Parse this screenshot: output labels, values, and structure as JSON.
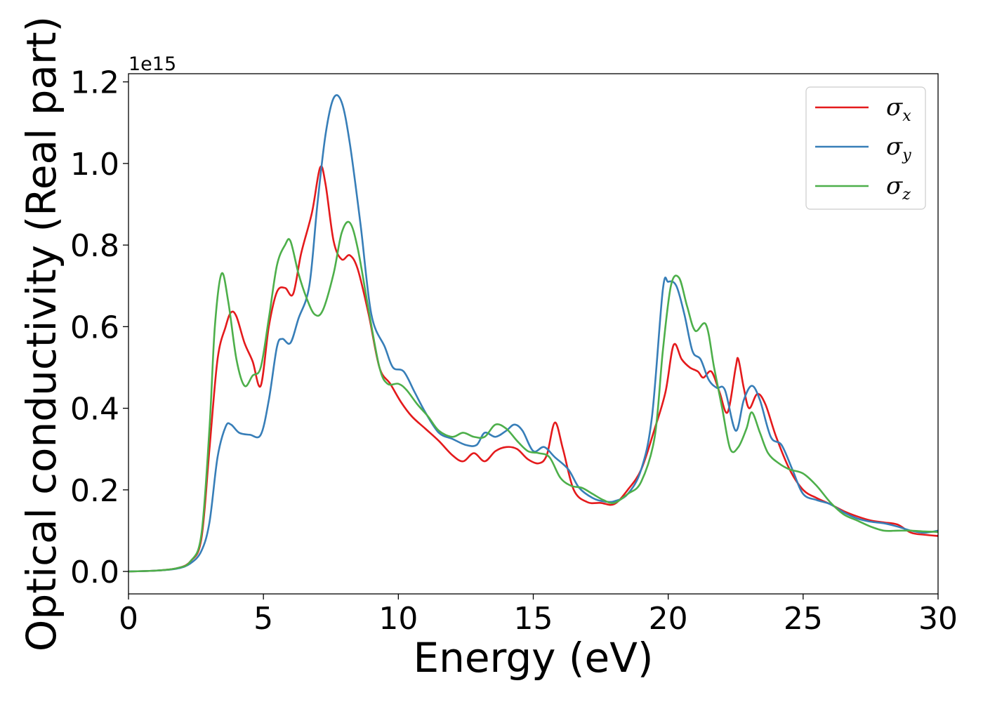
{
  "chart_data": {
    "type": "line",
    "xlabel": "Energy (eV)",
    "ylabel": "Optical conductivity (Real part)",
    "y_offset_label": "1e15",
    "xlim": [
      0,
      30
    ],
    "ylim": [
      -0.055,
      1.22
    ],
    "x_ticks": [
      0,
      5,
      10,
      15,
      20,
      25,
      30
    ],
    "x_tick_labels": [
      "0",
      "5",
      "10",
      "15",
      "20",
      "25",
      "30"
    ],
    "y_ticks": [
      0.0,
      0.2,
      0.4,
      0.6,
      0.8,
      1.0,
      1.2
    ],
    "y_tick_labels": [
      "0.0",
      "0.2",
      "0.4",
      "0.6",
      "0.8",
      "1.0",
      "1.2"
    ],
    "grid": false,
    "legend_position": "top-right",
    "series": [
      {
        "name": "σx",
        "symbol": "σ",
        "subscript": "x",
        "color": "#e41a1c",
        "points": [
          [
            0,
            0
          ],
          [
            1,
            0.002
          ],
          [
            1.8,
            0.008
          ],
          [
            2.3,
            0.025
          ],
          [
            2.7,
            0.08
          ],
          [
            3.0,
            0.3
          ],
          [
            3.3,
            0.52
          ],
          [
            3.6,
            0.6
          ],
          [
            3.8,
            0.635
          ],
          [
            4.0,
            0.625
          ],
          [
            4.3,
            0.56
          ],
          [
            4.6,
            0.515
          ],
          [
            4.9,
            0.455
          ],
          [
            5.2,
            0.6
          ],
          [
            5.5,
            0.685
          ],
          [
            5.8,
            0.695
          ],
          [
            6.1,
            0.68
          ],
          [
            6.4,
            0.78
          ],
          [
            6.8,
            0.88
          ],
          [
            7.1,
            0.99
          ],
          [
            7.3,
            0.95
          ],
          [
            7.6,
            0.81
          ],
          [
            7.9,
            0.765
          ],
          [
            8.2,
            0.775
          ],
          [
            8.5,
            0.74
          ],
          [
            8.9,
            0.63
          ],
          [
            9.3,
            0.5
          ],
          [
            9.7,
            0.46
          ],
          [
            10.1,
            0.415
          ],
          [
            10.5,
            0.38
          ],
          [
            11.0,
            0.35
          ],
          [
            11.5,
            0.32
          ],
          [
            12.0,
            0.285
          ],
          [
            12.4,
            0.27
          ],
          [
            12.8,
            0.29
          ],
          [
            13.2,
            0.27
          ],
          [
            13.6,
            0.295
          ],
          [
            14.0,
            0.305
          ],
          [
            14.4,
            0.3
          ],
          [
            14.8,
            0.275
          ],
          [
            15.2,
            0.265
          ],
          [
            15.5,
            0.285
          ],
          [
            15.8,
            0.365
          ],
          [
            16.1,
            0.3
          ],
          [
            16.5,
            0.2
          ],
          [
            17.0,
            0.17
          ],
          [
            17.5,
            0.168
          ],
          [
            18.0,
            0.165
          ],
          [
            18.5,
            0.2
          ],
          [
            19.0,
            0.25
          ],
          [
            19.5,
            0.35
          ],
          [
            19.9,
            0.44
          ],
          [
            20.2,
            0.555
          ],
          [
            20.5,
            0.52
          ],
          [
            20.8,
            0.5
          ],
          [
            21.1,
            0.49
          ],
          [
            21.3,
            0.475
          ],
          [
            21.6,
            0.49
          ],
          [
            21.9,
            0.44
          ],
          [
            22.2,
            0.39
          ],
          [
            22.5,
            0.5
          ],
          [
            22.6,
            0.52
          ],
          [
            22.8,
            0.45
          ],
          [
            23.0,
            0.4
          ],
          [
            23.3,
            0.435
          ],
          [
            23.6,
            0.41
          ],
          [
            24.0,
            0.33
          ],
          [
            24.5,
            0.25
          ],
          [
            25.0,
            0.2
          ],
          [
            25.5,
            0.18
          ],
          [
            26.0,
            0.165
          ],
          [
            26.5,
            0.148
          ],
          [
            27.0,
            0.135
          ],
          [
            27.5,
            0.125
          ],
          [
            28.0,
            0.12
          ],
          [
            28.5,
            0.115
          ],
          [
            29.0,
            0.095
          ],
          [
            29.5,
            0.09
          ],
          [
            30.0,
            0.087
          ]
        ]
      },
      {
        "name": "σy",
        "symbol": "σ",
        "subscript": "y",
        "color": "#377eb8",
        "points": [
          [
            0,
            0
          ],
          [
            1,
            0.002
          ],
          [
            1.8,
            0.007
          ],
          [
            2.3,
            0.02
          ],
          [
            2.7,
            0.05
          ],
          [
            3.0,
            0.12
          ],
          [
            3.3,
            0.28
          ],
          [
            3.6,
            0.355
          ],
          [
            3.8,
            0.36
          ],
          [
            4.1,
            0.34
          ],
          [
            4.5,
            0.335
          ],
          [
            4.9,
            0.335
          ],
          [
            5.2,
            0.42
          ],
          [
            5.5,
            0.55
          ],
          [
            5.7,
            0.57
          ],
          [
            6.0,
            0.56
          ],
          [
            6.3,
            0.62
          ],
          [
            6.7,
            0.7
          ],
          [
            7.0,
            0.9
          ],
          [
            7.3,
            1.07
          ],
          [
            7.6,
            1.16
          ],
          [
            7.9,
            1.15
          ],
          [
            8.2,
            1.05
          ],
          [
            8.6,
            0.85
          ],
          [
            9.0,
            0.63
          ],
          [
            9.5,
            0.55
          ],
          [
            9.8,
            0.5
          ],
          [
            10.2,
            0.49
          ],
          [
            10.6,
            0.44
          ],
          [
            11.0,
            0.39
          ],
          [
            11.5,
            0.34
          ],
          [
            12.0,
            0.325
          ],
          [
            12.5,
            0.31
          ],
          [
            12.9,
            0.31
          ],
          [
            13.2,
            0.34
          ],
          [
            13.6,
            0.33
          ],
          [
            14.0,
            0.345
          ],
          [
            14.3,
            0.36
          ],
          [
            14.6,
            0.345
          ],
          [
            15.0,
            0.295
          ],
          [
            15.4,
            0.305
          ],
          [
            15.8,
            0.28
          ],
          [
            16.3,
            0.25
          ],
          [
            16.7,
            0.205
          ],
          [
            17.2,
            0.18
          ],
          [
            17.6,
            0.172
          ],
          [
            18.0,
            0.172
          ],
          [
            18.5,
            0.19
          ],
          [
            19.0,
            0.25
          ],
          [
            19.4,
            0.38
          ],
          [
            19.8,
            0.69
          ],
          [
            20.0,
            0.71
          ],
          [
            20.3,
            0.7
          ],
          [
            20.6,
            0.63
          ],
          [
            20.9,
            0.54
          ],
          [
            21.2,
            0.52
          ],
          [
            21.5,
            0.47
          ],
          [
            21.8,
            0.45
          ],
          [
            22.1,
            0.445
          ],
          [
            22.5,
            0.345
          ],
          [
            22.8,
            0.42
          ],
          [
            23.1,
            0.455
          ],
          [
            23.4,
            0.42
          ],
          [
            23.8,
            0.33
          ],
          [
            24.2,
            0.31
          ],
          [
            24.6,
            0.25
          ],
          [
            25.0,
            0.19
          ],
          [
            25.5,
            0.175
          ],
          [
            26.0,
            0.165
          ],
          [
            26.5,
            0.145
          ],
          [
            27.0,
            0.13
          ],
          [
            27.5,
            0.122
          ],
          [
            28.0,
            0.118
          ],
          [
            28.5,
            0.11
          ],
          [
            29.0,
            0.1
          ],
          [
            29.5,
            0.095
          ],
          [
            30.0,
            0.1
          ]
        ]
      },
      {
        "name": "σz",
        "symbol": "σ",
        "subscript": "z",
        "color": "#4daf4a",
        "points": [
          [
            0,
            0
          ],
          [
            1,
            0.002
          ],
          [
            1.8,
            0.008
          ],
          [
            2.3,
            0.025
          ],
          [
            2.7,
            0.09
          ],
          [
            3.0,
            0.35
          ],
          [
            3.2,
            0.6
          ],
          [
            3.45,
            0.73
          ],
          [
            3.7,
            0.66
          ],
          [
            4.0,
            0.52
          ],
          [
            4.3,
            0.455
          ],
          [
            4.6,
            0.48
          ],
          [
            4.9,
            0.5
          ],
          [
            5.2,
            0.62
          ],
          [
            5.5,
            0.75
          ],
          [
            5.8,
            0.8
          ],
          [
            6.0,
            0.81
          ],
          [
            6.3,
            0.73
          ],
          [
            6.6,
            0.67
          ],
          [
            6.9,
            0.63
          ],
          [
            7.2,
            0.64
          ],
          [
            7.6,
            0.73
          ],
          [
            7.9,
            0.83
          ],
          [
            8.2,
            0.855
          ],
          [
            8.5,
            0.79
          ],
          [
            8.9,
            0.64
          ],
          [
            9.3,
            0.5
          ],
          [
            9.6,
            0.46
          ],
          [
            10.0,
            0.46
          ],
          [
            10.3,
            0.445
          ],
          [
            10.7,
            0.41
          ],
          [
            11.1,
            0.38
          ],
          [
            11.5,
            0.345
          ],
          [
            12.0,
            0.33
          ],
          [
            12.4,
            0.34
          ],
          [
            12.8,
            0.33
          ],
          [
            13.2,
            0.33
          ],
          [
            13.6,
            0.36
          ],
          [
            14.0,
            0.35
          ],
          [
            14.4,
            0.32
          ],
          [
            14.8,
            0.295
          ],
          [
            15.2,
            0.29
          ],
          [
            15.6,
            0.28
          ],
          [
            16.0,
            0.23
          ],
          [
            16.4,
            0.21
          ],
          [
            16.8,
            0.205
          ],
          [
            17.2,
            0.19
          ],
          [
            17.6,
            0.175
          ],
          [
            18.0,
            0.168
          ],
          [
            18.5,
            0.19
          ],
          [
            19.0,
            0.22
          ],
          [
            19.5,
            0.33
          ],
          [
            19.8,
            0.54
          ],
          [
            20.1,
            0.7
          ],
          [
            20.4,
            0.72
          ],
          [
            20.7,
            0.65
          ],
          [
            21.0,
            0.59
          ],
          [
            21.4,
            0.605
          ],
          [
            21.7,
            0.5
          ],
          [
            22.0,
            0.4
          ],
          [
            22.3,
            0.3
          ],
          [
            22.6,
            0.305
          ],
          [
            22.9,
            0.35
          ],
          [
            23.1,
            0.39
          ],
          [
            23.4,
            0.34
          ],
          [
            23.7,
            0.29
          ],
          [
            24.1,
            0.265
          ],
          [
            24.5,
            0.25
          ],
          [
            25.0,
            0.24
          ],
          [
            25.5,
            0.21
          ],
          [
            26.0,
            0.17
          ],
          [
            26.5,
            0.14
          ],
          [
            27.0,
            0.125
          ],
          [
            27.5,
            0.11
          ],
          [
            28.0,
            0.1
          ],
          [
            28.5,
            0.1
          ],
          [
            29.0,
            0.1
          ],
          [
            29.5,
            0.098
          ],
          [
            30.0,
            0.097
          ]
        ]
      }
    ]
  }
}
